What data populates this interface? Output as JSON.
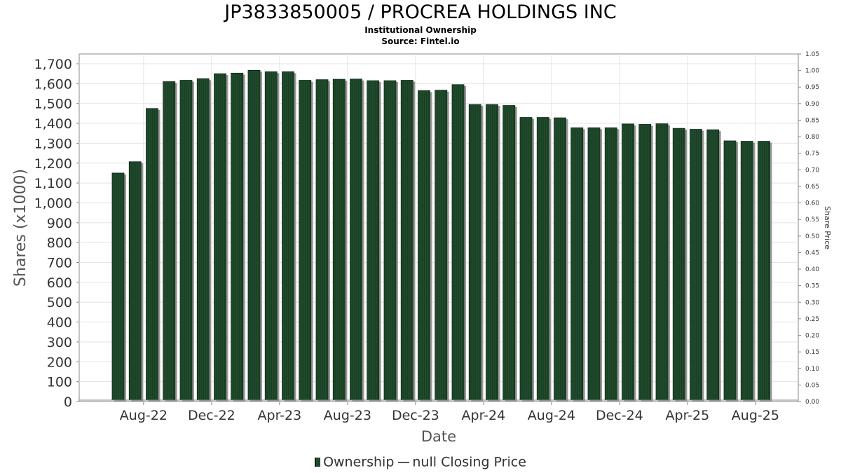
{
  "chart_data": {
    "type": "bar",
    "title": "JP3833850005 / PROCREA HOLDINGS INC",
    "subtitle": "Institutional Ownership",
    "source": "Source: Fintel.io",
    "xlabel": "Date",
    "ylabel": "Shares (x1000)",
    "y2label": "Share Price",
    "ylim": [
      0,
      1750
    ],
    "y2lim": [
      0,
      1.05
    ],
    "yticks": [
      "0",
      "100",
      "200",
      "300",
      "400",
      "500",
      "600",
      "700",
      "800",
      "900",
      "1,000",
      "1,100",
      "1,200",
      "1,300",
      "1,400",
      "1,500",
      "1,600",
      "1,700"
    ],
    "y2ticks": [
      "0.00",
      "0.05",
      "0.10",
      "0.15",
      "0.20",
      "0.25",
      "0.30",
      "0.35",
      "0.40",
      "0.45",
      "0.50",
      "0.55",
      "0.60",
      "0.65",
      "0.70",
      "0.75",
      "0.80",
      "0.85",
      "0.90",
      "0.95",
      "1.00",
      "1.05"
    ],
    "xticks": [
      {
        "label": "Aug-22",
        "index": 1.5
      },
      {
        "label": "Dec-22",
        "index": 5.5
      },
      {
        "label": "Apr-23",
        "index": 9.5
      },
      {
        "label": "Aug-23",
        "index": 13.5
      },
      {
        "label": "Dec-23",
        "index": 17.5
      },
      {
        "label": "Apr-24",
        "index": 21.5
      },
      {
        "label": "Aug-24",
        "index": 25.5
      },
      {
        "label": "Dec-24",
        "index": 29.5
      },
      {
        "label": "Apr-25",
        "index": 33.5
      },
      {
        "label": "Aug-25",
        "index": 37.5
      }
    ],
    "grid": true,
    "legend_position": "bottom",
    "series": [
      {
        "name": "Ownership",
        "color": "#1f4a2c",
        "values": [
          1150,
          1207,
          1475,
          1610,
          1617,
          1625,
          1650,
          1653,
          1667,
          1660,
          1660,
          1617,
          1620,
          1622,
          1623,
          1615,
          1615,
          1617,
          1565,
          1567,
          1595,
          1495,
          1495,
          1490,
          1430,
          1430,
          1428,
          1378,
          1378,
          1378,
          1397,
          1395,
          1398,
          1375,
          1370,
          1368,
          1312,
          1310,
          1310
        ]
      }
    ]
  },
  "legend": {
    "ownership_label": "Ownership",
    "price_label": "null Closing Price"
  }
}
